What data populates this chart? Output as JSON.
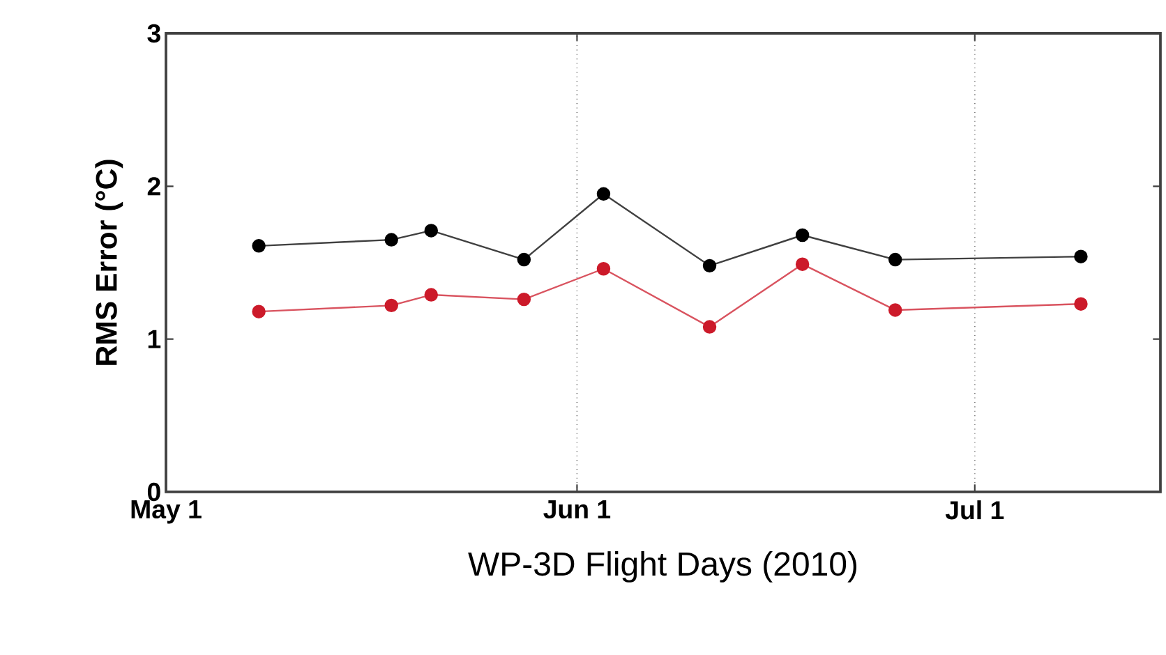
{
  "chart_data": {
    "type": "line",
    "xlabel": "WP-3D Flight Days (2010)",
    "ylabel": "RMS Error (°C)",
    "x": [
      "2010-05-08",
      "2010-05-18",
      "2010-05-21",
      "2010-05-28",
      "2010-06-03",
      "2010-06-11",
      "2010-06-18",
      "2010-06-25",
      "2010-07-09"
    ],
    "series": [
      {
        "color": "#000000",
        "values": [
          1.61,
          1.65,
          1.71,
          1.52,
          1.95,
          1.48,
          1.68,
          1.52,
          1.54
        ]
      },
      {
        "color": "#cc1a2a",
        "values": [
          1.18,
          1.22,
          1.29,
          1.26,
          1.46,
          1.08,
          1.49,
          1.19,
          1.23
        ]
      }
    ],
    "xlim": [
      "2010-05-01",
      "2010-07-15"
    ],
    "xticks": [
      {
        "value": "2010-05-01",
        "label": "May 1"
      },
      {
        "value": "2010-06-01",
        "label": "Jun 1"
      },
      {
        "value": "2010-07-01",
        "label": "Jul 1"
      }
    ],
    "ylim": [
      0,
      3
    ],
    "yticks": [
      0,
      1,
      2,
      3
    ],
    "grid": "x",
    "marker": "circle",
    "line_style": "solid"
  }
}
